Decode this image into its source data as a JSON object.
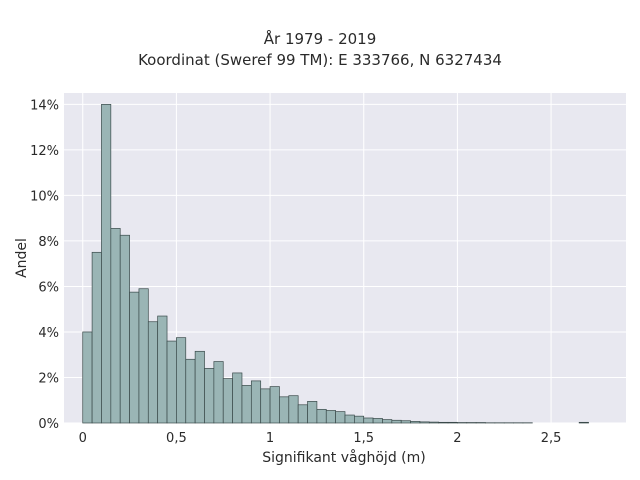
{
  "chart_data": {
    "type": "bar",
    "title": "År 1979 - 2019",
    "subtitle": "Koordinat (Sweref 99 TM): E 333766, N 6327434",
    "xlabel": "Signifikant våghöjd (m)",
    "ylabel": "Andel",
    "bin_width": 0.05,
    "xlim": [
      -0.1,
      2.9
    ],
    "ylim": [
      0,
      14.5
    ],
    "x_ticks": [
      0,
      0.5,
      1,
      1.5,
      2,
      2.5
    ],
    "x_tick_labels": [
      "0",
      "0,5",
      "1",
      "1,5",
      "2",
      "2,5"
    ],
    "y_ticks": [
      0,
      2,
      4,
      6,
      8,
      10,
      12,
      14
    ],
    "y_tick_labels": [
      "0%",
      "2%",
      "4%",
      "6%",
      "8%",
      "10%",
      "12%",
      "14%"
    ],
    "bin_starts": [
      0.0,
      0.05,
      0.1,
      0.15,
      0.2,
      0.25,
      0.3,
      0.35,
      0.4,
      0.45,
      0.5,
      0.55,
      0.6,
      0.65,
      0.7,
      0.75,
      0.8,
      0.85,
      0.9,
      0.95,
      1.0,
      1.05,
      1.1,
      1.15,
      1.2,
      1.25,
      1.3,
      1.35,
      1.4,
      1.45,
      1.5,
      1.55,
      1.6,
      1.65,
      1.7,
      1.75,
      1.8,
      1.85,
      1.9,
      1.95,
      2.0,
      2.05,
      2.1,
      2.15,
      2.2,
      2.25,
      2.3,
      2.35,
      2.65
    ],
    "values": [
      4.0,
      7.5,
      14.0,
      8.55,
      8.25,
      5.75,
      5.9,
      4.45,
      4.7,
      3.6,
      3.75,
      2.8,
      3.15,
      2.4,
      2.7,
      1.95,
      2.2,
      1.65,
      1.85,
      1.5,
      1.6,
      1.15,
      1.2,
      0.8,
      0.95,
      0.6,
      0.55,
      0.5,
      0.35,
      0.3,
      0.22,
      0.2,
      0.15,
      0.12,
      0.1,
      0.07,
      0.05,
      0.04,
      0.03,
      0.03,
      0.02,
      0.02,
      0.02,
      0.01,
      0.01,
      0.01,
      0.01,
      0.01,
      0.03
    ],
    "colors": {
      "bar_fill": "#9ab5b5",
      "bar_stroke": "#3a4a4a",
      "plot_bg": "#e8e8f0",
      "grid": "#ffffff"
    },
    "grid": true
  }
}
